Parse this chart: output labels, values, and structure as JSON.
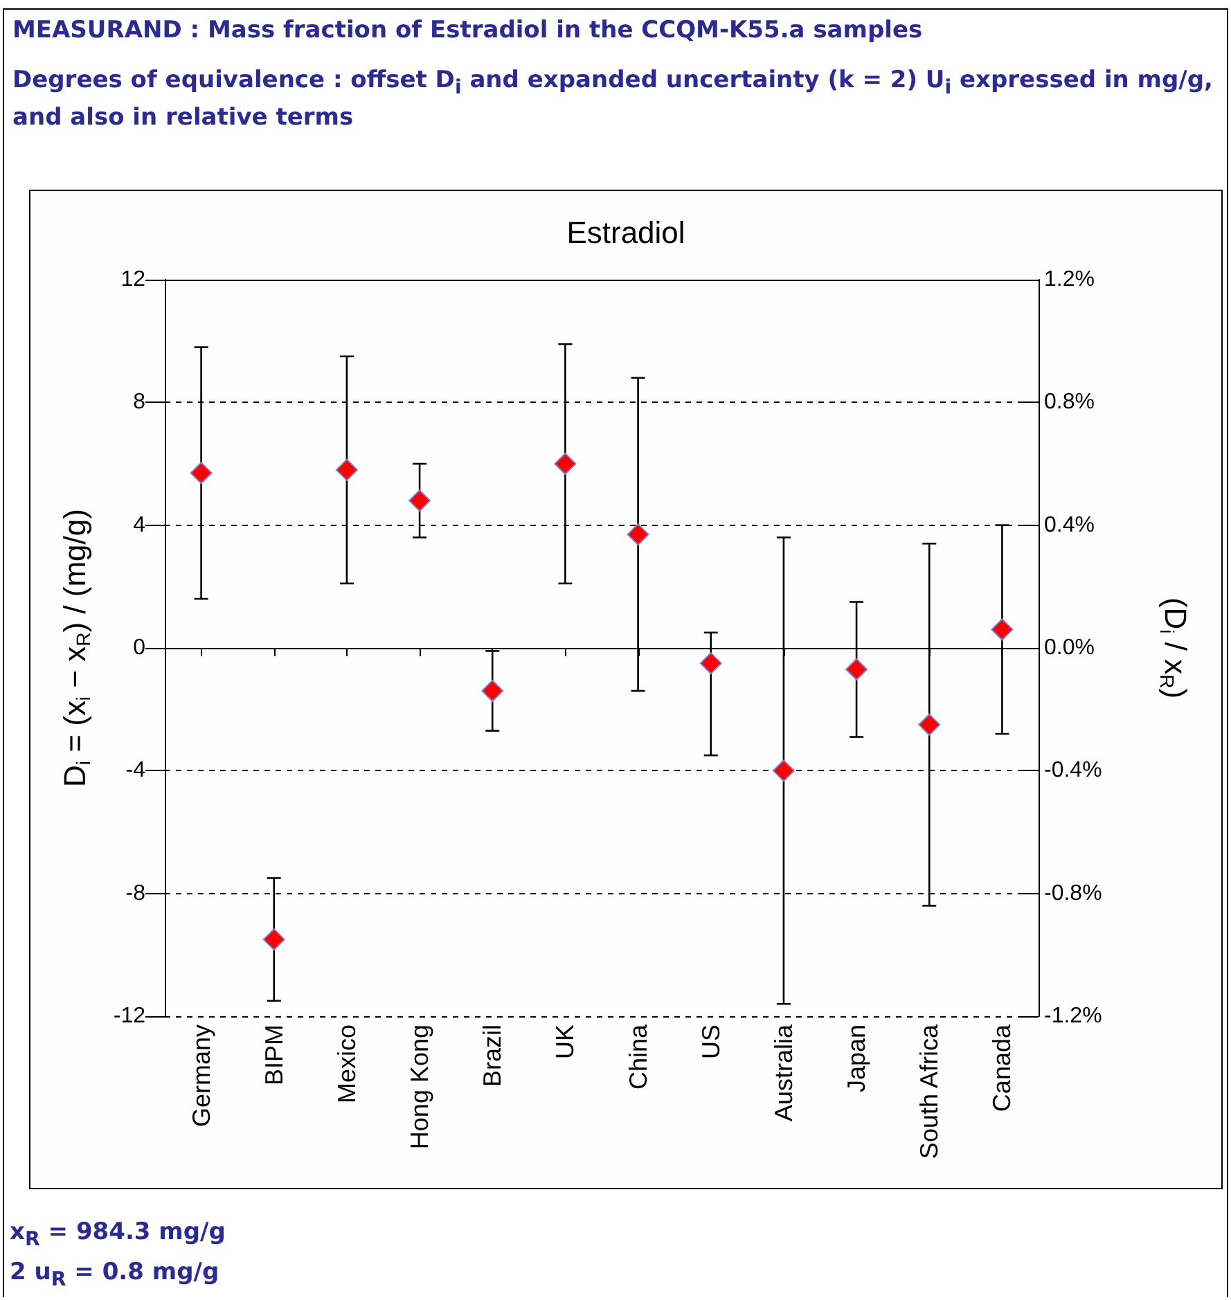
{
  "chart_data": {
    "type": "scatter",
    "title": "Estradiol",
    "ylabel": "D$_{i}$ = (x$_{i}$ − x$_{R}$) / (mg/g)",
    "y2label": "(D$_{i}$ / x$_{R}$)",
    "annotations": [
      "MEASURAND : Mass fraction of Estradiol in the CCQM-K55.a samples",
      "Degrees of equivalence : offset D$_{i}$ and expanded uncertainty (k = 2) U$_{i}$ expressed in mg/g, and also in relative terms",
      "x$_{R}$ = 984.3 mg/g",
      "2 u$_{R}$ = 0.8 mg/g"
    ],
    "categories": [
      "Germany",
      "BIPM",
      "Mexico",
      "Hong Kong",
      "Brazil",
      "UK",
      "China",
      "US",
      "Australia",
      "Japan",
      "South Africa",
      "Canada"
    ],
    "series": [
      {
        "color": "#ff0000",
        "values": [
          5.7,
          -9.5,
          5.8,
          4.8,
          -1.4,
          6.0,
          3.7,
          -0.5,
          -4.0,
          -0.7,
          -2.5,
          0.6
        ],
        "errors": [
          4.1,
          2.0,
          3.7,
          1.2,
          1.3,
          3.9,
          5.1,
          [
            -3.5,
            0.5
          ],
          7.6,
          2.2,
          5.9,
          3.4
        ]
      }
    ],
    "ylim": [
      -12,
      12
    ],
    "yticks": [
      -12,
      -8,
      -4,
      0,
      4,
      8,
      12
    ],
    "y2lim": [
      -1.2,
      1.2
    ],
    "y2ticks": [
      {
        "value": -1.2,
        "label": "-1.2%"
      },
      {
        "value": -0.8,
        "label": "-0.8%"
      },
      {
        "value": -0.4,
        "label": "-0.4%"
      },
      {
        "value": 0,
        "label": "0.0%"
      },
      {
        "value": 0.4,
        "label": "0.4%"
      },
      {
        "value": 0.8,
        "label": "0.8%"
      },
      {
        "value": 1.2,
        "label": "1.2%"
      }
    ],
    "grid": "y",
    "marker": "diamond"
  }
}
